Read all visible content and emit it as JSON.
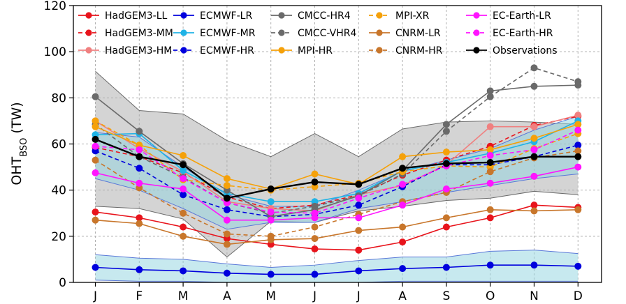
{
  "chart_data": {
    "type": "line",
    "title": "",
    "xlabel": "",
    "ylabel": "OHT",
    "ylabel_subscript": "BSO",
    "ylabel_unit": " (TW)",
    "ylim": [
      0,
      120
    ],
    "yticks": [
      0,
      20,
      40,
      60,
      80,
      100,
      120
    ],
    "categories": [
      "J",
      "F",
      "M",
      "A",
      "M",
      "J",
      "J",
      "A",
      "S",
      "O",
      "N",
      "D"
    ],
    "grid": true,
    "legend_position": "top",
    "bands": [
      {
        "name": "grey-envelope",
        "color": "#a9a9a9",
        "opacity": 0.5,
        "upper": [
          91.5,
          74.5,
          73,
          61.5,
          54.5,
          64.5,
          54.5,
          66.5,
          69.5,
          70,
          69.5,
          68.5
        ],
        "lower": [
          33,
          32,
          27.5,
          11,
          26.5,
          26,
          31,
          33,
          35.5,
          36.5,
          39.5,
          38
        ]
      },
      {
        "name": "hr-spread",
        "color": "#8fd3e0",
        "opacity": 0.5,
        "upper": [
          65,
          63,
          50,
          38,
          33,
          33,
          40,
          48,
          53,
          58,
          66,
          72
        ],
        "lower": [
          45,
          40,
          32,
          23,
          26,
          26,
          32,
          35,
          39,
          42,
          45,
          47
        ]
      },
      {
        "name": "lr-spread",
        "color": "#8fd3e0",
        "opacity": 0.5,
        "upper": [
          12,
          10.5,
          10,
          8,
          6.5,
          7.5,
          9.5,
          11,
          11,
          13.5,
          14,
          12.5
        ],
        "lower": [
          1,
          0.5,
          0.5,
          0,
          0,
          0,
          0,
          0.5,
          0.5,
          0.5,
          0.5,
          0.5
        ]
      }
    ],
    "series": [
      {
        "name": "HadGEM3-LL",
        "color": "#e8141c",
        "dash": false,
        "marker": true,
        "values": [
          30.5,
          28,
          24,
          19,
          16.5,
          14.5,
          14,
          17.5,
          24,
          28,
          33.5,
          32.5
        ]
      },
      {
        "name": "HadGEM3-MM",
        "color": "#e8141c",
        "dash": true,
        "marker": true,
        "values": [
          58.5,
          54.5,
          47.5,
          37,
          32,
          33.5,
          38,
          46.5,
          53,
          59,
          68,
          72
        ]
      },
      {
        "name": "HadGEM3-HM",
        "color": "#f08080",
        "dash": false,
        "marker": true,
        "values": [
          70,
          58,
          48,
          35,
          32,
          31,
          38,
          42,
          51,
          67.5,
          67.5,
          72.5
        ]
      },
      {
        "name": "ECMWF-LR",
        "color": "#0000dd",
        "dash": false,
        "marker": true,
        "values": [
          6.5,
          5.5,
          5,
          4,
          3.5,
          3.5,
          5,
          6,
          6.5,
          7.5,
          7.5,
          7
        ]
      },
      {
        "name": "ECMWF-MR",
        "color": "#1fb3e6",
        "dash": false,
        "marker": true,
        "values": [
          64,
          64.5,
          48.5,
          38.5,
          35,
          35,
          38.5,
          48.5,
          52,
          56,
          61,
          70
        ]
      },
      {
        "name": "ECMWF-HR",
        "color": "#0000dd",
        "dash": true,
        "marker": true,
        "values": [
          57,
          49.5,
          38,
          31.5,
          28.5,
          29.5,
          33.5,
          41.5,
          51,
          51,
          54.5,
          59.5
        ]
      },
      {
        "name": "CMCC-HR4",
        "color": "#6a6a6a",
        "dash": false,
        "marker": true,
        "values": [
          80.5,
          65.5,
          51.5,
          40,
          28.5,
          31.5,
          37.5,
          48.5,
          68.5,
          83,
          85,
          85.5
        ]
      },
      {
        "name": "CMCC-VHR4",
        "color": "#6a6a6a",
        "dash": true,
        "marker": true,
        "values": [
          68.5,
          54.5,
          45.5,
          34.5,
          30,
          33,
          37.5,
          47,
          65.5,
          80.5,
          93,
          87
        ]
      },
      {
        "name": "MPI-HR",
        "color": "#f5a10a",
        "dash": false,
        "marker": true,
        "values": [
          67.5,
          59.5,
          55,
          45,
          40.5,
          47,
          42.5,
          54.5,
          56.5,
          57.5,
          62.5,
          68.5
        ]
      },
      {
        "name": "MPI-XR",
        "color": "#f5a10a",
        "dash": true,
        "marker": true,
        "values": [
          70,
          59.5,
          44.5,
          42,
          40,
          41.5,
          43,
          48,
          50.5,
          50,
          58,
          64.5
        ]
      },
      {
        "name": "CNRM-LR",
        "color": "#c8762b",
        "dash": false,
        "marker": true,
        "values": [
          27,
          25.5,
          20,
          16.5,
          18.5,
          19,
          22.5,
          24,
          28,
          31.5,
          31,
          31.5
        ]
      },
      {
        "name": "CNRM-HR",
        "color": "#c8762b",
        "dash": true,
        "marker": true,
        "values": [
          53,
          41,
          30,
          21,
          20,
          24,
          29.5,
          35,
          39,
          48,
          54,
          57
        ]
      },
      {
        "name": "EC-Earth-LR",
        "color": "#ff14ff",
        "dash": false,
        "marker": true,
        "values": [
          47.5,
          43,
          40.5,
          27,
          27,
          28,
          28,
          33.5,
          40.5,
          43,
          46,
          50
        ]
      },
      {
        "name": "EC-Earth-HR",
        "color": "#ff14ff",
        "dash": true,
        "marker": true,
        "values": [
          59,
          57.5,
          45,
          34.5,
          30.5,
          30,
          36.5,
          42.5,
          50.5,
          55,
          57.5,
          66
        ]
      },
      {
        "name": "Observations",
        "color": "#000000",
        "dash": false,
        "marker": true,
        "values": [
          62,
          54.5,
          51,
          36.5,
          40.5,
          43.5,
          42.5,
          49.5,
          51.5,
          52,
          54.5,
          54.5
        ]
      }
    ],
    "legend_columns": [
      [
        "HadGEM3-LL",
        "HadGEM3-MM",
        "HadGEM3-HM"
      ],
      [
        "ECMWF-LR",
        "ECMWF-MR",
        "ECMWF-HR"
      ],
      [
        "CMCC-HR4",
        "CMCC-VHR4",
        "MPI-HR"
      ],
      [
        "MPI-XR",
        "CNRM-LR",
        "CNRM-HR"
      ],
      [
        "EC-Earth-LR",
        "EC-Earth-HR",
        "Observations"
      ]
    ]
  }
}
